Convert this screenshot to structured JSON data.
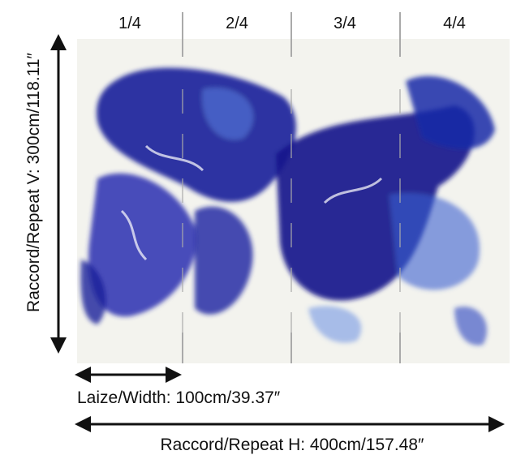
{
  "panels": [
    "1/4",
    "2/4",
    "3/4",
    "4/4"
  ],
  "repeat_v": "Raccord/Repeat V: 300cm/118.11″",
  "width": "Laize/Width: 100cm/39.37″",
  "repeat_h": "Raccord/Repeat H: 400cm/157.48″"
}
